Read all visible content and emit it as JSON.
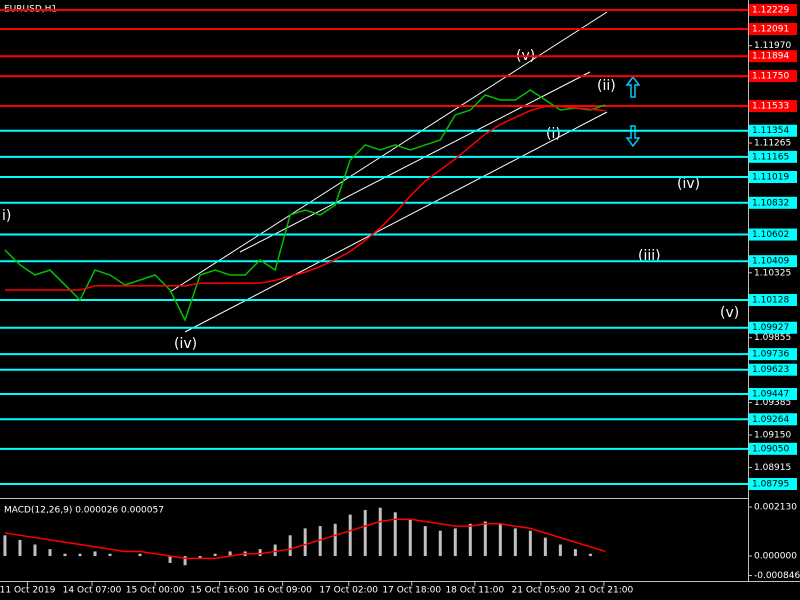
{
  "chart_data": [
    {
      "type": "line",
      "title": "EURUSD,H1",
      "xlim": [
        -0.33,
        49.5
      ],
      "ylim": [
        1.08701,
        1.12301
      ],
      "series": [
        {
          "color": "#00c000",
          "values": [
            1.1049,
            1.10382,
            1.10309,
            1.10345,
            1.10237,
            1.10128,
            1.10345,
            1.10309,
            1.10237,
            1.10273,
            1.10309,
            1.102,
            1.09983,
            1.10309,
            1.10345,
            1.10309,
            1.10309,
            1.10418,
            1.10345,
            1.10744,
            1.1078,
            1.10744,
            1.10816,
            1.11142,
            1.11251,
            1.11215,
            1.11251,
            1.11215,
            1.11251,
            1.11287,
            1.11468,
            1.11504,
            1.11613,
            1.11577,
            1.11577,
            1.11649,
            1.11577,
            1.11504,
            1.11519,
            1.11504,
            1.11541
          ]
        },
        {
          "color": "#ff0000",
          "values": [
            1.102,
            1.102,
            1.102,
            1.102,
            1.102,
            1.102,
            1.1023,
            1.1023,
            1.1023,
            1.1023,
            1.1023,
            1.1023,
            1.1023,
            1.1025,
            1.1025,
            1.1025,
            1.1025,
            1.1025,
            1.1027,
            1.103,
            1.1033,
            1.1037,
            1.1042,
            1.1048,
            1.1056,
            1.1065,
            1.1076,
            1.1088,
            1.1099,
            1.1107,
            1.1115,
            1.1124,
            1.1133,
            1.114,
            1.1145,
            1.115,
            1.1153,
            1.1153,
            1.1152,
            1.1151,
            1.115
          ]
        }
      ],
      "levels": [
        {
          "color": "#ff0000",
          "ticks": [
            1.12229,
            1.12091,
            1.11894,
            {
              "value": 1.1175,
              "label": "1.11750"
            },
            1.11533
          ]
        },
        {
          "color": "#00ffff",
          "ticks": [
            1.11354,
            1.11165,
            1.11019,
            1.10832,
            1.10602,
            1.10409,
            1.10128,
            1.09927,
            1.09736,
            1.09623,
            1.09447,
            1.09264,
            {
              "value": 1.0905,
              "label": "1.09050"
            },
            1.08795
          ]
        }
      ],
      "yticks": [
        {
          "value": 1.1197,
          "label": "1.11970"
        },
        1.11265,
        1.10325,
        1.09855,
        1.09385,
        {
          "value": 1.0915,
          "label": "1.09150"
        },
        1.08915
      ],
      "annotations": [
        "(v)",
        "(ii)",
        "(i)",
        "(iv)",
        "(iii)",
        "(v)",
        "(iv)",
        "i)"
      ]
    },
    {
      "type": "bar",
      "title": "MACD(12,26,9) 0.000026 0.000057",
      "xlim": [
        -0.33,
        49.5
      ],
      "ylim": [
        -0.00104,
        0.00239
      ],
      "color": "#c0c0c0",
      "values": [
        0.0009,
        0.0007,
        0.0005,
        0.0003,
        0.0001,
        0.0001,
        0.0002,
        0.0001,
        0.0,
        0.0001,
        0.0,
        -0.0003,
        -0.0004,
        -0.0001,
        0.0001,
        0.0002,
        0.0002,
        0.0003,
        0.0005,
        0.0009,
        0.0012,
        0.0013,
        0.0014,
        0.0018,
        0.002,
        0.0021,
        0.0019,
        0.0016,
        0.0013,
        0.0011,
        0.0012,
        0.0014,
        0.0015,
        0.0014,
        0.0012,
        0.0011,
        0.0008,
        0.0005,
        0.0003,
        0.0001,
        0.0
      ],
      "signal_color": "#ff0000",
      "signal_values": [
        0.001,
        0.0009,
        0.0008,
        0.0007,
        0.0006,
        0.0005,
        0.0004,
        0.0003,
        0.0002,
        0.0002,
        0.0001,
        0.0,
        -0.0001,
        -0.0001,
        -0.0001,
        0.0,
        0.0001,
        0.0001,
        0.0002,
        0.0003,
        0.0005,
        0.0007,
        0.0009,
        0.0011,
        0.0013,
        0.0015,
        0.0016,
        0.0016,
        0.0015,
        0.0014,
        0.0013,
        0.0013,
        0.0014,
        0.0014,
        0.0013,
        0.0012,
        0.001,
        0.0008,
        0.0006,
        0.0004,
        0.0002
      ],
      "yticks": [
        {
          "value": 0.00213,
          "label": "0.002130"
        },
        {
          "value": 0,
          "label": "0.000000"
        },
        {
          "value": -0.000846,
          "label": "-0.000846"
        }
      ],
      "xticks": [
        {
          "value": 1.5,
          "label": "11 Oct 2019"
        },
        {
          "value": 5.8,
          "label": "14 Oct 07:00"
        },
        {
          "value": 10,
          "label": "15 Oct 00:00"
        },
        {
          "value": 14.3,
          "label": "15 Oct 16:00"
        },
        {
          "value": 18.5,
          "label": "16 Oct 09:00"
        },
        {
          "value": 22.9,
          "label": "17 Oct 02:00"
        },
        {
          "value": 27.1,
          "label": "17 Oct 18:00"
        },
        {
          "value": 31.3,
          "label": "18 Oct 11:00"
        },
        {
          "value": 35.7,
          "label": "21 Oct 05:00"
        },
        {
          "value": 39.9,
          "label": "21 Oct 21:00"
        }
      ]
    }
  ]
}
